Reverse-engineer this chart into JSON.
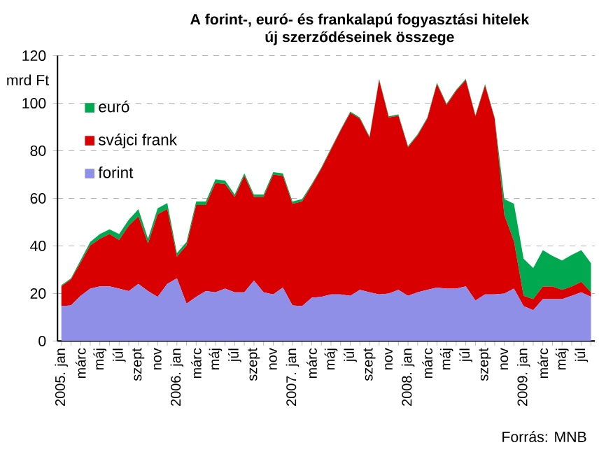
{
  "chart_data": {
    "type": "area",
    "stacked": true,
    "title": "A forint-, euró-  és frankalapú fogyasztási hitelek",
    "subtitle": "új szerződéseinek összege",
    "ylabel": "mrd Ft",
    "categories": [
      "2005. jan",
      null,
      "márc",
      null,
      "máj",
      null,
      "júl",
      null,
      "szept",
      null,
      "nov",
      null,
      "2006. jan",
      null,
      "márc",
      null,
      "máj",
      null,
      "júl",
      null,
      "szept",
      null,
      "nov",
      null,
      "2007. jan",
      null,
      "márc",
      null,
      "máj",
      null,
      "júl",
      null,
      "szept",
      null,
      "nov",
      null,
      "2008. jan",
      null,
      "márc",
      null,
      "máj",
      null,
      "júl",
      null,
      "szept",
      null,
      "nov",
      null,
      "2009. jan",
      null,
      "márc",
      null,
      "máj",
      null,
      "júl",
      null
    ],
    "series": [
      {
        "name": "forint",
        "color": "#8f8fe8",
        "values": [
          14.7,
          15,
          19,
          22,
          23,
          23,
          22,
          21,
          24,
          21,
          18.6,
          24,
          26.4,
          15.7,
          18.6,
          21,
          20.5,
          22,
          20.5,
          20.5,
          25.4,
          20.5,
          19.6,
          22.5,
          15,
          14.7,
          18.2,
          18.6,
          19.6,
          19.6,
          19,
          21.5,
          20.5,
          19.6,
          20,
          21.5,
          19,
          20.5,
          21.5,
          22.5,
          22,
          22,
          23,
          17,
          19.6,
          19.6,
          20,
          22,
          14.7,
          13,
          17.6,
          17.6,
          17.6,
          19,
          20.5,
          18.6
        ]
      },
      {
        "name": "svájci frank",
        "color": "#d80000",
        "values": [
          8.3,
          10.9,
          14,
          18.2,
          20,
          22,
          20.5,
          27.5,
          28.4,
          20,
          34.7,
          31.5,
          9.1,
          24.5,
          38.6,
          36.2,
          46,
          44,
          40.1,
          49,
          35.2,
          40.1,
          50.4,
          47,
          42.7,
          44,
          47.3,
          53.9,
          60.9,
          68.9,
          77,
          72,
          65,
          90.1,
          74,
          73.3,
          62.5,
          66,
          72,
          85.6,
          77.3,
          83.2,
          86.7,
          77.5,
          87.9,
          73.9,
          33,
          20,
          4.3,
          4.6,
          5.3,
          5.3,
          3.9,
          3.9,
          4.4,
          1.9
        ]
      },
      {
        "name": "euró",
        "color": "#00a84f",
        "values": [
          0.5,
          0.5,
          1,
          1.5,
          2,
          2,
          2.5,
          2.5,
          3,
          2,
          2.5,
          2.5,
          1.5,
          1.5,
          1.5,
          1.5,
          1.5,
          1.5,
          1,
          1,
          1,
          1,
          1,
          1,
          1,
          1,
          0.5,
          0.5,
          0.5,
          0.5,
          0.5,
          0.5,
          0.5,
          0.5,
          0.5,
          0.5,
          0.5,
          0.5,
          0.5,
          0.5,
          0.5,
          0.5,
          0.5,
          0.5,
          0.5,
          0.5,
          6.7,
          15.7,
          15.6,
          13.1,
          15.3,
          12.9,
          12.4,
          13.3,
          13.3,
          12.2
        ]
      }
    ],
    "ylim": [
      0,
      120
    ],
    "yticks": [
      0,
      20,
      40,
      60,
      80,
      100,
      120
    ],
    "grid": "y",
    "legend": "top left",
    "annotations": [
      "Forrás: MNB"
    ]
  }
}
